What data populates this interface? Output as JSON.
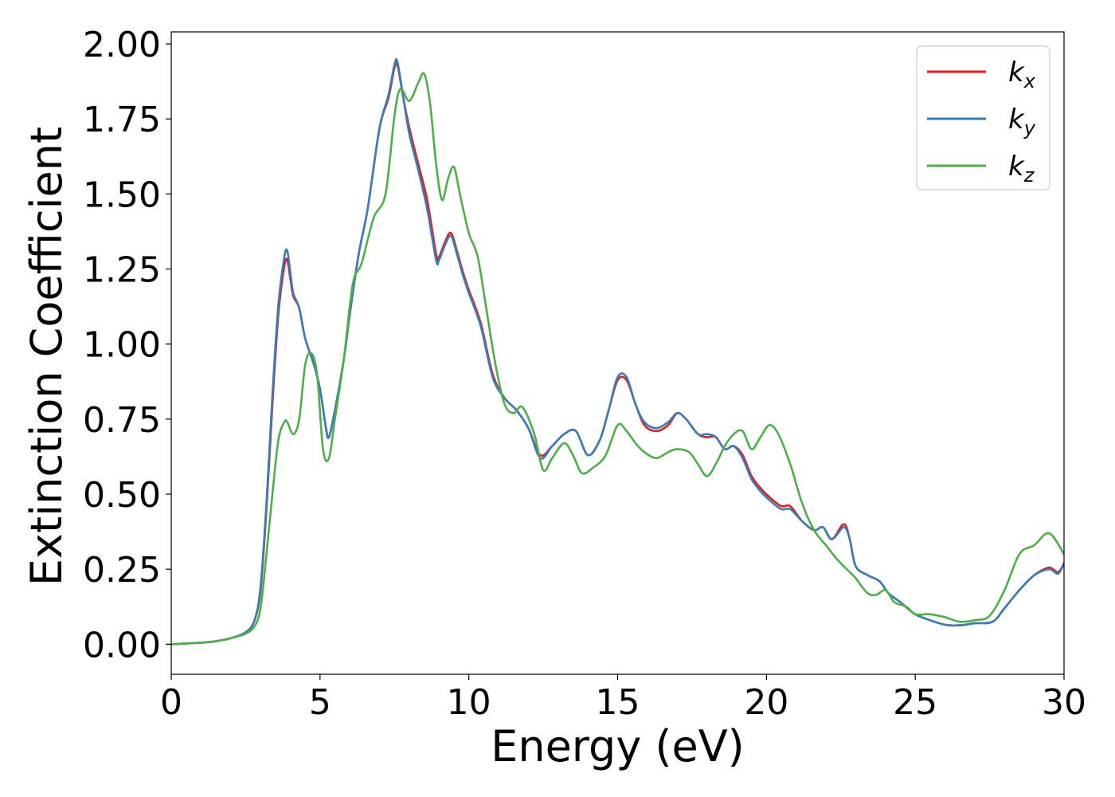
{
  "chart_data": {
    "type": "line",
    "title": "",
    "xlabel": "Energy (eV)",
    "ylabel": "Extinction Coefficient",
    "xlim": [
      0,
      30
    ],
    "ylim": [
      -0.1,
      2.04
    ],
    "x_ticks": [
      0,
      5,
      10,
      15,
      20,
      25,
      30
    ],
    "x_tick_labels": [
      "0",
      "5",
      "10",
      "15",
      "20",
      "25",
      "30"
    ],
    "y_ticks": [
      0,
      0.25,
      0.5,
      0.75,
      1.0,
      1.25,
      1.5,
      1.75,
      2.0
    ],
    "y_tick_labels": [
      "0.00",
      "0.25",
      "0.50",
      "0.75",
      "1.00",
      "1.25",
      "1.50",
      "1.75",
      "2.00"
    ],
    "grid": false,
    "legend_position": "top-right",
    "series": [
      {
        "name": "k",
        "subscript": "x",
        "color": "#e41a1c",
        "points": [
          [
            0,
            0
          ],
          [
            1,
            0.005
          ],
          [
            1.5,
            0.01
          ],
          [
            2,
            0.02
          ],
          [
            2.5,
            0.04
          ],
          [
            2.8,
            0.08
          ],
          [
            3.0,
            0.18
          ],
          [
            3.2,
            0.45
          ],
          [
            3.4,
            0.8
          ],
          [
            3.6,
            1.1
          ],
          [
            3.8,
            1.26
          ],
          [
            3.9,
            1.28
          ],
          [
            4.0,
            1.22
          ],
          [
            4.1,
            1.16
          ],
          [
            4.3,
            1.12
          ],
          [
            4.5,
            1.02
          ],
          [
            4.8,
            0.93
          ],
          [
            5.0,
            0.85
          ],
          [
            5.2,
            0.72
          ],
          [
            5.3,
            0.69
          ],
          [
            5.5,
            0.78
          ],
          [
            5.8,
            0.95
          ],
          [
            6.0,
            1.1
          ],
          [
            6.3,
            1.3
          ],
          [
            6.6,
            1.45
          ],
          [
            7.0,
            1.72
          ],
          [
            7.3,
            1.82
          ],
          [
            7.5,
            1.92
          ],
          [
            7.6,
            1.93
          ],
          [
            7.8,
            1.82
          ],
          [
            8.0,
            1.72
          ],
          [
            8.3,
            1.6
          ],
          [
            8.6,
            1.48
          ],
          [
            8.9,
            1.3
          ],
          [
            9.0,
            1.29
          ],
          [
            9.2,
            1.34
          ],
          [
            9.4,
            1.37
          ],
          [
            9.6,
            1.31
          ],
          [
            9.8,
            1.24
          ],
          [
            10.0,
            1.18
          ],
          [
            10.4,
            1.07
          ],
          [
            10.8,
            0.9
          ],
          [
            11.2,
            0.82
          ],
          [
            11.6,
            0.78
          ],
          [
            12.0,
            0.72
          ],
          [
            12.4,
            0.63
          ],
          [
            12.8,
            0.66
          ],
          [
            13.2,
            0.7
          ],
          [
            13.6,
            0.71
          ],
          [
            14.0,
            0.63
          ],
          [
            14.4,
            0.68
          ],
          [
            14.7,
            0.78
          ],
          [
            15.0,
            0.88
          ],
          [
            15.3,
            0.88
          ],
          [
            15.6,
            0.8
          ],
          [
            15.9,
            0.73
          ],
          [
            16.3,
            0.71
          ],
          [
            16.7,
            0.73
          ],
          [
            17.0,
            0.77
          ],
          [
            17.3,
            0.75
          ],
          [
            17.7,
            0.7
          ],
          [
            18.0,
            0.69
          ],
          [
            18.3,
            0.69
          ],
          [
            18.6,
            0.65
          ],
          [
            18.9,
            0.66
          ],
          [
            19.2,
            0.63
          ],
          [
            19.5,
            0.56
          ],
          [
            19.8,
            0.52
          ],
          [
            20.1,
            0.49
          ],
          [
            20.5,
            0.46
          ],
          [
            20.8,
            0.46
          ],
          [
            21.2,
            0.41
          ],
          [
            21.6,
            0.38
          ],
          [
            21.9,
            0.39
          ],
          [
            22.2,
            0.35
          ],
          [
            22.6,
            0.4
          ],
          [
            22.8,
            0.35
          ],
          [
            23.0,
            0.26
          ],
          [
            23.4,
            0.23
          ],
          [
            23.8,
            0.21
          ],
          [
            24.1,
            0.17
          ],
          [
            24.5,
            0.14
          ],
          [
            25.0,
            0.1
          ],
          [
            25.5,
            0.08
          ],
          [
            26.0,
            0.065
          ],
          [
            26.5,
            0.063
          ],
          [
            27.0,
            0.07
          ],
          [
            27.6,
            0.075
          ],
          [
            28.0,
            0.12
          ],
          [
            28.5,
            0.18
          ],
          [
            29.0,
            0.23
          ],
          [
            29.5,
            0.255
          ],
          [
            29.8,
            0.24
          ],
          [
            30.0,
            0.27
          ]
        ]
      },
      {
        "name": "k",
        "subscript": "y",
        "color": "#377eb8",
        "points": [
          [
            0,
            0
          ],
          [
            1,
            0.005
          ],
          [
            1.5,
            0.01
          ],
          [
            2,
            0.02
          ],
          [
            2.5,
            0.04
          ],
          [
            2.8,
            0.08
          ],
          [
            3.0,
            0.19
          ],
          [
            3.2,
            0.47
          ],
          [
            3.4,
            0.83
          ],
          [
            3.6,
            1.13
          ],
          [
            3.8,
            1.29
          ],
          [
            3.9,
            1.31
          ],
          [
            4.0,
            1.24
          ],
          [
            4.1,
            1.17
          ],
          [
            4.3,
            1.12
          ],
          [
            4.5,
            1.02
          ],
          [
            4.8,
            0.93
          ],
          [
            5.0,
            0.85
          ],
          [
            5.2,
            0.72
          ],
          [
            5.3,
            0.69
          ],
          [
            5.5,
            0.78
          ],
          [
            5.8,
            0.95
          ],
          [
            6.0,
            1.1
          ],
          [
            6.3,
            1.3
          ],
          [
            6.6,
            1.45
          ],
          [
            7.0,
            1.72
          ],
          [
            7.3,
            1.83
          ],
          [
            7.5,
            1.93
          ],
          [
            7.6,
            1.94
          ],
          [
            7.8,
            1.82
          ],
          [
            8.0,
            1.7
          ],
          [
            8.3,
            1.58
          ],
          [
            8.6,
            1.45
          ],
          [
            8.9,
            1.28
          ],
          [
            9.0,
            1.28
          ],
          [
            9.2,
            1.33
          ],
          [
            9.4,
            1.36
          ],
          [
            9.6,
            1.3
          ],
          [
            9.8,
            1.23
          ],
          [
            10.0,
            1.17
          ],
          [
            10.4,
            1.06
          ],
          [
            10.8,
            0.89
          ],
          [
            11.2,
            0.82
          ],
          [
            11.6,
            0.78
          ],
          [
            12.0,
            0.72
          ],
          [
            12.4,
            0.62
          ],
          [
            12.8,
            0.66
          ],
          [
            13.2,
            0.7
          ],
          [
            13.6,
            0.71
          ],
          [
            14.0,
            0.63
          ],
          [
            14.4,
            0.68
          ],
          [
            14.7,
            0.78
          ],
          [
            15.0,
            0.89
          ],
          [
            15.3,
            0.89
          ],
          [
            15.6,
            0.8
          ],
          [
            15.9,
            0.74
          ],
          [
            16.3,
            0.72
          ],
          [
            16.7,
            0.74
          ],
          [
            17.0,
            0.77
          ],
          [
            17.3,
            0.75
          ],
          [
            17.7,
            0.7
          ],
          [
            18.0,
            0.7
          ],
          [
            18.3,
            0.69
          ],
          [
            18.6,
            0.65
          ],
          [
            18.9,
            0.66
          ],
          [
            19.2,
            0.62
          ],
          [
            19.5,
            0.55
          ],
          [
            19.8,
            0.51
          ],
          [
            20.1,
            0.48
          ],
          [
            20.5,
            0.45
          ],
          [
            20.8,
            0.45
          ],
          [
            21.2,
            0.41
          ],
          [
            21.6,
            0.38
          ],
          [
            21.9,
            0.39
          ],
          [
            22.2,
            0.35
          ],
          [
            22.6,
            0.39
          ],
          [
            22.8,
            0.35
          ],
          [
            23.0,
            0.26
          ],
          [
            23.4,
            0.23
          ],
          [
            23.8,
            0.21
          ],
          [
            24.1,
            0.17
          ],
          [
            24.5,
            0.14
          ],
          [
            25.0,
            0.1
          ],
          [
            25.5,
            0.08
          ],
          [
            26.0,
            0.065
          ],
          [
            26.5,
            0.063
          ],
          [
            27.0,
            0.07
          ],
          [
            27.6,
            0.075
          ],
          [
            28.0,
            0.12
          ],
          [
            28.5,
            0.18
          ],
          [
            29.0,
            0.23
          ],
          [
            29.5,
            0.25
          ],
          [
            29.8,
            0.235
          ],
          [
            30.0,
            0.27
          ]
        ]
      },
      {
        "name": "k",
        "subscript": "z",
        "color": "#4daf4a",
        "points": [
          [
            0,
            0
          ],
          [
            1,
            0.005
          ],
          [
            1.5,
            0.01
          ],
          [
            2,
            0.02
          ],
          [
            2.5,
            0.035
          ],
          [
            2.8,
            0.06
          ],
          [
            3.0,
            0.12
          ],
          [
            3.2,
            0.3
          ],
          [
            3.4,
            0.5
          ],
          [
            3.6,
            0.68
          ],
          [
            3.8,
            0.74
          ],
          [
            3.9,
            0.74
          ],
          [
            4.1,
            0.7
          ],
          [
            4.3,
            0.75
          ],
          [
            4.5,
            0.93
          ],
          [
            4.7,
            0.97
          ],
          [
            4.9,
            0.9
          ],
          [
            5.1,
            0.65
          ],
          [
            5.3,
            0.62
          ],
          [
            5.5,
            0.75
          ],
          [
            5.8,
            0.95
          ],
          [
            6.1,
            1.2
          ],
          [
            6.4,
            1.27
          ],
          [
            6.8,
            1.42
          ],
          [
            7.2,
            1.5
          ],
          [
            7.5,
            1.76
          ],
          [
            7.7,
            1.85
          ],
          [
            8.0,
            1.81
          ],
          [
            8.3,
            1.87
          ],
          [
            8.5,
            1.9
          ],
          [
            8.7,
            1.8
          ],
          [
            8.9,
            1.6
          ],
          [
            9.1,
            1.48
          ],
          [
            9.3,
            1.55
          ],
          [
            9.5,
            1.59
          ],
          [
            9.7,
            1.5
          ],
          [
            10.0,
            1.37
          ],
          [
            10.3,
            1.29
          ],
          [
            10.6,
            1.11
          ],
          [
            10.9,
            0.93
          ],
          [
            11.2,
            0.8
          ],
          [
            11.5,
            0.77
          ],
          [
            11.8,
            0.79
          ],
          [
            12.2,
            0.7
          ],
          [
            12.5,
            0.58
          ],
          [
            12.8,
            0.62
          ],
          [
            13.2,
            0.67
          ],
          [
            13.5,
            0.63
          ],
          [
            13.8,
            0.57
          ],
          [
            14.2,
            0.59
          ],
          [
            14.6,
            0.63
          ],
          [
            15.0,
            0.73
          ],
          [
            15.3,
            0.71
          ],
          [
            15.6,
            0.67
          ],
          [
            15.9,
            0.64
          ],
          [
            16.3,
            0.62
          ],
          [
            16.7,
            0.64
          ],
          [
            17.0,
            0.65
          ],
          [
            17.4,
            0.64
          ],
          [
            17.7,
            0.6
          ],
          [
            18.0,
            0.56
          ],
          [
            18.3,
            0.6
          ],
          [
            18.6,
            0.66
          ],
          [
            18.9,
            0.7
          ],
          [
            19.2,
            0.71
          ],
          [
            19.5,
            0.65
          ],
          [
            19.8,
            0.69
          ],
          [
            20.1,
            0.73
          ],
          [
            20.4,
            0.7
          ],
          [
            20.8,
            0.6
          ],
          [
            21.2,
            0.47
          ],
          [
            21.6,
            0.38
          ],
          [
            22.0,
            0.33
          ],
          [
            22.4,
            0.28
          ],
          [
            22.8,
            0.24
          ],
          [
            23.0,
            0.22
          ],
          [
            23.4,
            0.17
          ],
          [
            23.7,
            0.165
          ],
          [
            24.0,
            0.18
          ],
          [
            24.3,
            0.14
          ],
          [
            24.7,
            0.125
          ],
          [
            25.0,
            0.1
          ],
          [
            25.5,
            0.1
          ],
          [
            26.0,
            0.09
          ],
          [
            26.5,
            0.075
          ],
          [
            27.0,
            0.08
          ],
          [
            27.5,
            0.095
          ],
          [
            28.0,
            0.18
          ],
          [
            28.5,
            0.3
          ],
          [
            29.0,
            0.33
          ],
          [
            29.5,
            0.37
          ],
          [
            30.0,
            0.3
          ]
        ]
      }
    ]
  }
}
